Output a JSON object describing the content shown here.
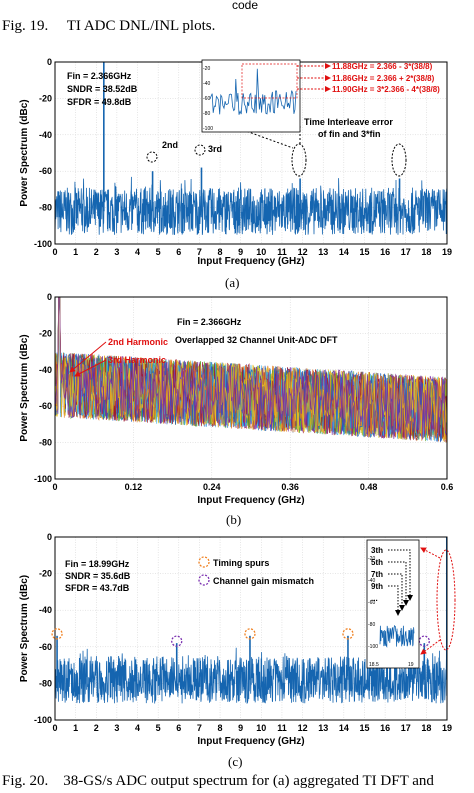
{
  "page": {
    "top_word": "code",
    "fig19_caption": "Fig. 19.     TI ADC DNL/INL plots.",
    "fig20_caption": "Fig. 20.    38-GS/s ADC output spectrum for (a) aggregated TI DFT and"
  },
  "colors": {
    "spectrum": "#1565b0",
    "annotation_red": "#e01010",
    "timing_spur_orange": "#f08020",
    "gain_purple": "#7a2fb0"
  },
  "panels": {
    "a": {
      "sublabel": "(a)",
      "ylabel": "Power Spectrum (dBc)",
      "xlabel": "Input Frequency (GHz)",
      "stats": [
        "Fin = 2.366GHz",
        "SNDR = 38.52dB",
        "SFDR = 49.8dB"
      ],
      "harm2_label": "2nd",
      "harm3_label": "3rd",
      "ti_error_line1": "Time Interleave error",
      "ti_error_line2": "of fin and 3*fin",
      "eq1": "11.88GHz = 2.366 - 3*(38/8)",
      "eq2": "11.86GHz = 2.366 + 2*(38/8)",
      "eq3": "11.90GHz = 3*2.366 - 4*(38/8)",
      "inset_yticks": [
        "-20",
        "-40",
        "-60",
        "-80",
        "-100"
      ]
    },
    "b": {
      "sublabel": "(b)",
      "ylabel": "Power Spectrum (dBc)",
      "xlabel": "Input Frequency (GHz)",
      "fin": "Fin = 2.366GHz",
      "note": "Overlapped 32 Channel Unit-ADC DFT",
      "harm2": "2nd Harmonic",
      "harm3": "3rd Harmonic"
    },
    "c": {
      "sublabel": "(c)",
      "ylabel": "Power Spectrum (dBc)",
      "xlabel": "Input Frequency (GHz)",
      "stats": [
        "Fin = 18.99GHz",
        "SNDR = 35.6dB",
        "SFDR = 43.7dB"
      ],
      "legend_timing": "Timing spurs",
      "legend_gain": "Channel gain mismatch",
      "inset_labels": [
        "3th",
        "5th",
        "7th",
        "9th",
        "..."
      ],
      "inset_yticks": [
        "-20",
        "-40",
        "-60",
        "-80",
        "-100"
      ],
      "inset_xticks": [
        "18.5",
        "19"
      ]
    }
  },
  "chart_data": [
    {
      "type": "line",
      "id": "a",
      "xlabel": "Input Frequency (GHz)",
      "ylabel": "Power Spectrum (dBc)",
      "xlim": [
        0,
        19
      ],
      "ylim": [
        -100,
        0
      ],
      "xticks": [
        0,
        1,
        2,
        3,
        4,
        5,
        6,
        7,
        8,
        9,
        10,
        11,
        12,
        13,
        14,
        15,
        16,
        17,
        18,
        19
      ],
      "yticks": [
        0,
        -20,
        -40,
        -60,
        -80,
        -100
      ],
      "noise_floor": -82,
      "peaks": [
        {
          "x": 2.366,
          "y": 0
        },
        {
          "x": 4.73,
          "y": -60
        },
        {
          "x": 7.1,
          "y": -58
        },
        {
          "x": 11.88,
          "y": -64
        },
        {
          "x": 16.7,
          "y": -64
        }
      ]
    },
    {
      "type": "line",
      "id": "b",
      "xlabel": "Input Frequency (GHz)",
      "ylabel": "Power Spectrum (dBc)",
      "xlim": [
        0,
        0.6
      ],
      "ylim": [
        -100,
        0
      ],
      "xticks": [
        0,
        0.12,
        0.24,
        0.36,
        0.48,
        0.6
      ],
      "yticks": [
        0,
        -20,
        -40,
        -60,
        -80,
        -100
      ],
      "series_count": 32,
      "noise_floor_start": -48,
      "noise_floor_end": -62,
      "peaks": [
        {
          "x": 0.006,
          "y": 0
        },
        {
          "x": 0.012,
          "y": -48
        },
        {
          "x": 0.018,
          "y": -52
        }
      ]
    },
    {
      "type": "line",
      "id": "c",
      "xlabel": "Input Frequency (GHz)",
      "ylabel": "Power Spectrum (dBc)",
      "xlim": [
        0,
        19
      ],
      "ylim": [
        -100,
        0
      ],
      "xticks": [
        0,
        1,
        2,
        3,
        4,
        5,
        6,
        7,
        8,
        9,
        10,
        11,
        12,
        13,
        14,
        15,
        16,
        17,
        18,
        19
      ],
      "yticks": [
        0,
        -20,
        -40,
        -60,
        -80,
        -100
      ],
      "noise_floor": -78,
      "peaks": [
        {
          "x": 0.1,
          "y": -54,
          "kind": "timing"
        },
        {
          "x": 5.9,
          "y": -58,
          "kind": "gain"
        },
        {
          "x": 9.45,
          "y": -54,
          "kind": "timing"
        },
        {
          "x": 14.2,
          "y": -54,
          "kind": "timing"
        },
        {
          "x": 17.9,
          "y": -58,
          "kind": "gain"
        },
        {
          "x": 18.99,
          "y": 0,
          "kind": "fundamental"
        }
      ]
    }
  ]
}
